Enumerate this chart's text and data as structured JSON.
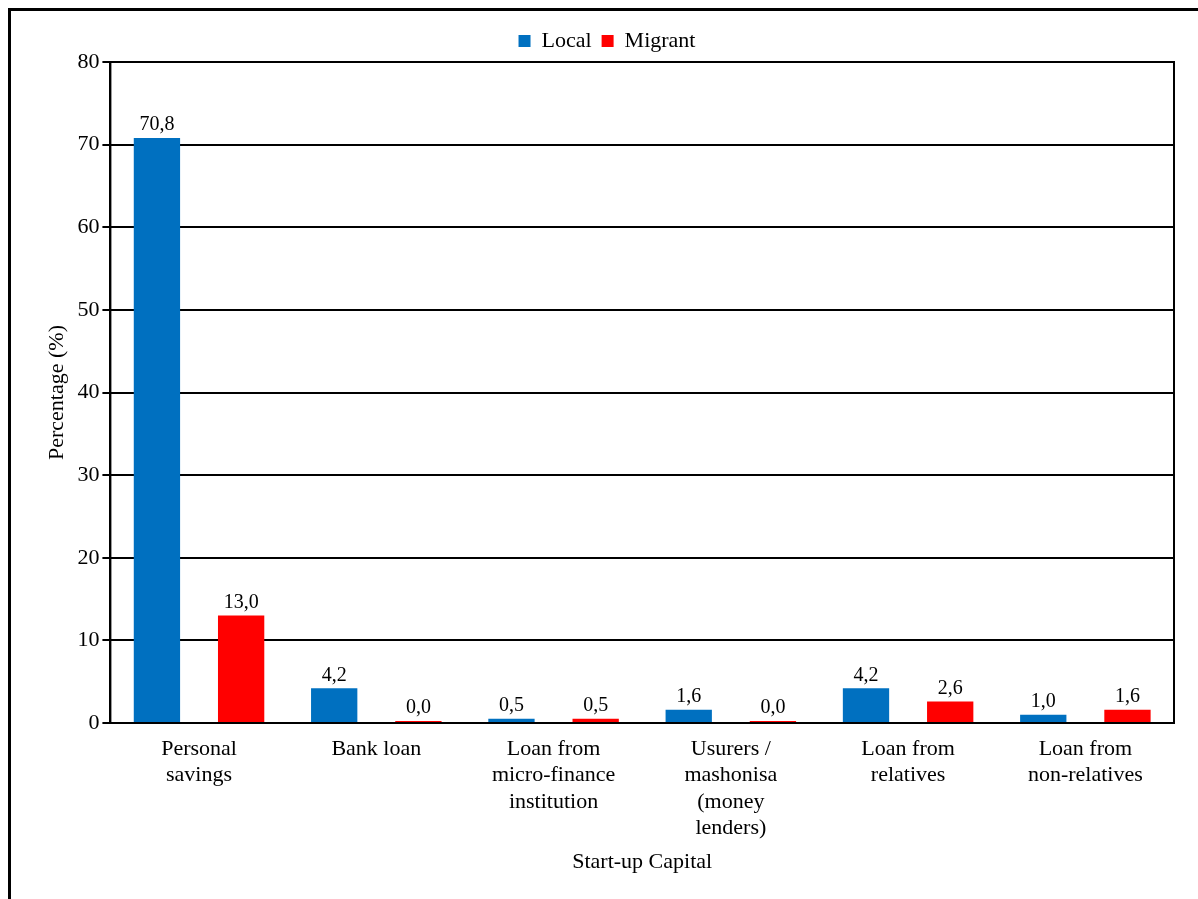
{
  "chart_data": {
    "type": "bar",
    "xlabel": "Start-up Capital",
    "ylabel": "Percentage (%)",
    "categories": [
      "Personal savings",
      "Bank loan",
      "Loan from micro-finance institution",
      "Usurers / mashonisa (money lenders)",
      "Loan from relatives",
      "Loan from non-relatives"
    ],
    "series": [
      {
        "name": "Local",
        "color": "#0070c0",
        "values": [
          70.8,
          4.2,
          0.5,
          1.6,
          4.2,
          1.0
        ],
        "value_labels": [
          "70,8",
          "4,2",
          "0,5",
          "1,6",
          "4,2",
          "1,0"
        ]
      },
      {
        "name": "Migrant",
        "color": "#ff0000",
        "values": [
          13.0,
          0.0,
          0.5,
          0.0,
          2.6,
          1.6
        ],
        "value_labels": [
          "13,0",
          "0,0",
          "0,5",
          "0,0",
          "2,6",
          "1,6"
        ]
      }
    ],
    "ylim": [
      0,
      80
    ],
    "yticks": [
      0,
      10,
      20,
      30,
      40,
      50,
      60,
      70,
      80
    ],
    "grid": "y",
    "legend": "top"
  }
}
